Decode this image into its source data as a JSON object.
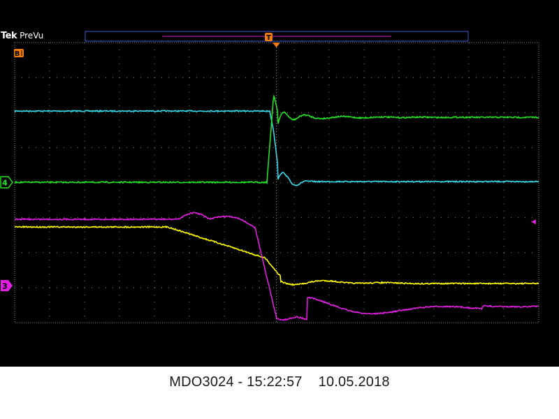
{
  "instrument": {
    "brand": "Tek",
    "acquisition_mode": "PreVu",
    "record_view_label": "T"
  },
  "channels": [
    {
      "id": "1",
      "name": "channel-1-yellow",
      "color": "#ffff00"
    },
    {
      "id": "2",
      "name": "channel-2-cyan",
      "color": "#33dfee",
      "label": "",
      "level_div": 2.0
    },
    {
      "id": "3",
      "name": "channel-3-magenta",
      "color": "#e11ee1",
      "label": "3",
      "level_div": 6.0
    },
    {
      "id": "4",
      "name": "channel-4-green",
      "color": "#22e622",
      "label": "4",
      "level_div": 4.0
    }
  ],
  "reference_labels": {
    "top_left": "B",
    "right_marker": "◀"
  },
  "caption": {
    "model": "MDO3024",
    "time": "15:22:57",
    "date": "10.05.2018",
    "text": "MDO3024 - 15:22:57    10.05.2018"
  },
  "colors": {
    "graticule": "#8a8a8a",
    "trigger_marker": "#f07a10",
    "record_bar_border": "#3b5bd6",
    "record_bar_window": "#d428d4"
  }
}
